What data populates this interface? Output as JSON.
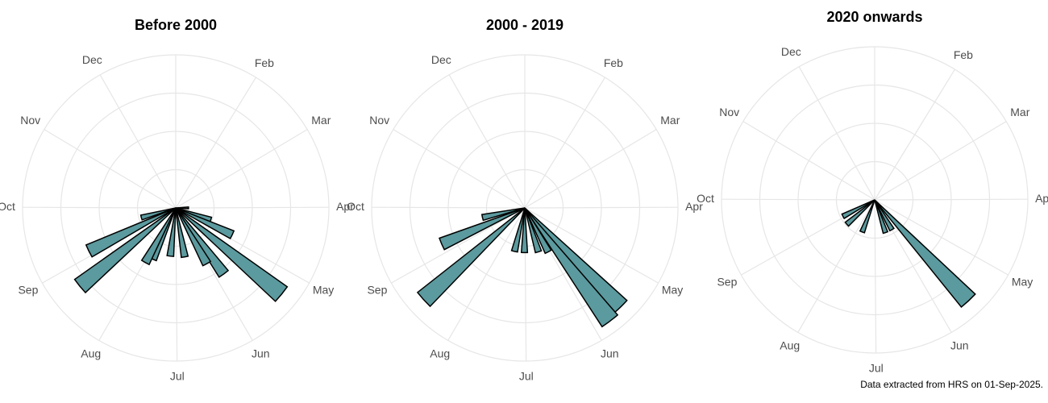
{
  "chart_data": [
    {
      "type": "polar_bar",
      "title": "Before 2000",
      "x": [
        91,
        110,
        117,
        131,
        146,
        153,
        172,
        189,
        207,
        212,
        234,
        247,
        258
      ],
      "values": [
        1,
        2.9,
        4.9,
        10.7,
        6.4,
        5,
        3.9,
        3.8,
        4.4,
        4.9,
        9.7,
        7.6,
        2.8
      ],
      "color": "#5b9a9e",
      "xlim": [
        0,
        365
      ],
      "xticks": [
        {
          "value": 32,
          "label": "Feb"
        },
        {
          "value": 60,
          "label": "Mar"
        },
        {
          "value": 91,
          "label": "Apr"
        },
        {
          "value": 121,
          "label": "May"
        },
        {
          "value": 152,
          "label": "Jun"
        },
        {
          "value": 182,
          "label": "Jul"
        },
        {
          "value": 213,
          "label": "Aug"
        },
        {
          "value": 244,
          "label": "Sep"
        },
        {
          "value": 274,
          "label": "Oct"
        },
        {
          "value": 305,
          "label": "Nov"
        },
        {
          "value": 335,
          "label": "Dec"
        }
      ],
      "ylim": [
        0,
        12
      ],
      "yticks": [
        3,
        6,
        9,
        12
      ],
      "grid": true
    },
    {
      "type": "polar_bar",
      "title": "2000 - 2019",
      "x": [
        138,
        145,
        154,
        165,
        183,
        196,
        231,
        250,
        261
      ],
      "values": [
        10.8,
        11.1,
        3.9,
        3.6,
        3.5,
        3.5,
        10.7,
        7.1,
        3.4
      ],
      "color": "#5b9a9e",
      "xlim": [
        0,
        365
      ],
      "xticks": [
        {
          "value": 32,
          "label": "Feb"
        },
        {
          "value": 60,
          "label": "Mar"
        },
        {
          "value": 91,
          "label": "Apr"
        },
        {
          "value": 121,
          "label": "May"
        },
        {
          "value": 152,
          "label": "Jun"
        },
        {
          "value": 182,
          "label": "Jul"
        },
        {
          "value": 213,
          "label": "Aug"
        },
        {
          "value": 244,
          "label": "Sep"
        },
        {
          "value": 274,
          "label": "Oct"
        },
        {
          "value": 305,
          "label": "Nov"
        },
        {
          "value": 335,
          "label": "Dec"
        }
      ],
      "ylim": [
        0,
        12
      ],
      "yticks": [
        3,
        6,
        9,
        12
      ],
      "grid": true
    },
    {
      "type": "polar_bar",
      "title": "2020 onwards",
      "x": [
        139,
        152,
        164,
        204,
        232,
        246
      ],
      "values": [
        10.8,
        2.7,
        2.7,
        2.7,
        2.9,
        2.8
      ],
      "color": "#5b9a9e",
      "xlim": [
        0,
        365
      ],
      "xticks": [
        {
          "value": 32,
          "label": "Feb"
        },
        {
          "value": 60,
          "label": "Mar"
        },
        {
          "value": 91,
          "label": "Apr"
        },
        {
          "value": 121,
          "label": "May"
        },
        {
          "value": 152,
          "label": "Jun"
        },
        {
          "value": 182,
          "label": "Jul"
        },
        {
          "value": 213,
          "label": "Aug"
        },
        {
          "value": 244,
          "label": "Sep"
        },
        {
          "value": 274,
          "label": "Oct"
        },
        {
          "value": 305,
          "label": "Nov"
        },
        {
          "value": 335,
          "label": "Dec"
        }
      ],
      "ylim": [
        0,
        12
      ],
      "yticks": [
        3,
        6,
        9,
        12
      ],
      "grid": true
    }
  ],
  "caption": "Data extracted from HRS on 01-Sep-2025."
}
